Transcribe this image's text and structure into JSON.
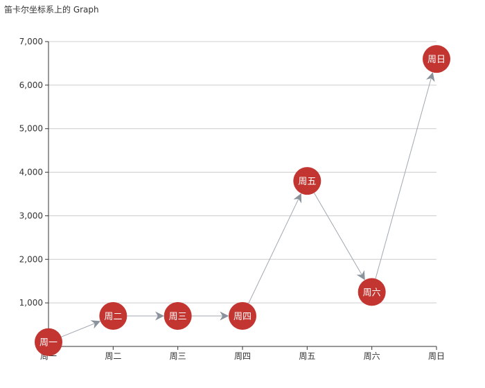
{
  "chart_data": {
    "type": "graph",
    "title": "笛卡尔坐标系上的 Graph",
    "categories": [
      "周一",
      "周二",
      "周三",
      "周四",
      "周五",
      "周六",
      "周日"
    ],
    "yticks": [
      1000,
      2000,
      3000,
      4000,
      5000,
      6000,
      7000
    ],
    "ylim": [
      0,
      7000
    ],
    "nodes": [
      {
        "name": "周一",
        "x": "周一",
        "y": 100
      },
      {
        "name": "周二",
        "x": "周二",
        "y": 700
      },
      {
        "name": "周三",
        "x": "周三",
        "y": 700
      },
      {
        "name": "周四",
        "x": "周四",
        "y": 700
      },
      {
        "name": "周五",
        "x": "周五",
        "y": 3800
      },
      {
        "name": "周六",
        "x": "周六",
        "y": 1250
      },
      {
        "name": "周日",
        "x": "周日",
        "y": 6600
      }
    ],
    "links": [
      {
        "source": "周一",
        "target": "周二"
      },
      {
        "source": "周二",
        "target": "周三"
      },
      {
        "source": "周三",
        "target": "周四"
      },
      {
        "source": "周四",
        "target": "周五"
      },
      {
        "source": "周五",
        "target": "周六"
      },
      {
        "source": "周六",
        "target": "周日"
      }
    ],
    "colors": {
      "node": "#c23531",
      "link": "#a0a8b0",
      "arrow": "#8a939c",
      "grid": "#cccccc",
      "axis": "#333333"
    }
  }
}
